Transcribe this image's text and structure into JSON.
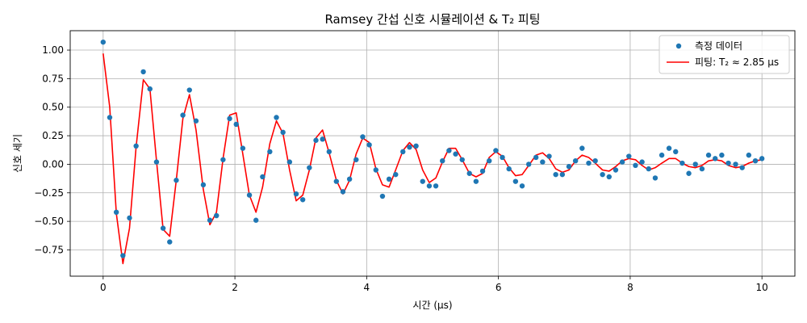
{
  "chart_data": {
    "type": "scatter+line",
    "title": "Ramsey 간섭 신호 시뮬레이션 & T₂ 피팅",
    "xlabel": "시간 (μs)",
    "ylabel": "신호 세기",
    "xlim": [
      -0.5,
      10.5
    ],
    "ylim": [
      -0.98,
      1.17
    ],
    "xticks": [
      0,
      2,
      4,
      6,
      8,
      10
    ],
    "xtick_labels": [
      "0",
      "2",
      "4",
      "6",
      "8",
      "10"
    ],
    "yticks": [
      -0.75,
      -0.5,
      -0.25,
      0.0,
      0.25,
      0.5,
      0.75,
      1.0
    ],
    "ytick_labels": [
      "−0.75",
      "−0.50",
      "−0.25",
      "0.00",
      "0.25",
      "0.50",
      "0.75",
      "1.00"
    ],
    "grid": true,
    "legend_position": "top-right",
    "colors": {
      "data": "#1f77b4",
      "fit": "#ff0000"
    },
    "series": [
      {
        "name": "측정 데이터",
        "kind": "scatter",
        "x": [
          0.0,
          0.1,
          0.2,
          0.3,
          0.4,
          0.5,
          0.61,
          0.71,
          0.81,
          0.91,
          1.01,
          1.11,
          1.21,
          1.31,
          1.41,
          1.52,
          1.62,
          1.72,
          1.82,
          1.92,
          2.02,
          2.12,
          2.22,
          2.32,
          2.42,
          2.53,
          2.63,
          2.73,
          2.83,
          2.93,
          3.03,
          3.13,
          3.23,
          3.33,
          3.43,
          3.54,
          3.64,
          3.74,
          3.84,
          3.94,
          4.04,
          4.14,
          4.24,
          4.34,
          4.44,
          4.55,
          4.65,
          4.75,
          4.85,
          4.95,
          5.05,
          5.15,
          5.25,
          5.35,
          5.45,
          5.56,
          5.66,
          5.76,
          5.86,
          5.96,
          6.06,
          6.16,
          6.26,
          6.36,
          6.46,
          6.57,
          6.67,
          6.77,
          6.87,
          6.97,
          7.07,
          7.17,
          7.27,
          7.37,
          7.47,
          7.58,
          7.68,
          7.78,
          7.88,
          7.98,
          8.08,
          8.18,
          8.28,
          8.38,
          8.48,
          8.59,
          8.69,
          8.79,
          8.89,
          8.99,
          9.09,
          9.19,
          9.29,
          9.39,
          9.49,
          9.6,
          9.7,
          9.8,
          9.9,
          10.0
        ],
        "y": [
          1.07,
          0.41,
          -0.42,
          -0.8,
          -0.47,
          0.16,
          0.81,
          0.66,
          0.02,
          -0.56,
          -0.68,
          -0.14,
          0.43,
          0.65,
          0.38,
          -0.18,
          -0.49,
          -0.45,
          0.04,
          0.4,
          0.35,
          0.14,
          -0.27,
          -0.49,
          -0.11,
          0.11,
          0.41,
          0.28,
          0.02,
          -0.26,
          -0.31,
          -0.03,
          0.21,
          0.22,
          0.11,
          -0.15,
          -0.24,
          -0.13,
          0.04,
          0.24,
          0.17,
          -0.05,
          -0.28,
          -0.13,
          -0.09,
          0.11,
          0.15,
          0.16,
          -0.15,
          -0.19,
          -0.19,
          0.03,
          0.12,
          0.09,
          0.04,
          -0.08,
          -0.15,
          -0.06,
          0.03,
          0.12,
          0.06,
          -0.04,
          -0.15,
          -0.19,
          0.0,
          0.06,
          0.02,
          0.07,
          -0.09,
          -0.09,
          -0.02,
          0.03,
          0.14,
          0.01,
          0.03,
          -0.09,
          -0.11,
          -0.05,
          0.02,
          0.07,
          -0.01,
          0.02,
          -0.04,
          -0.12,
          0.08,
          0.14,
          0.11,
          0.01,
          -0.08,
          0.0,
          -0.04,
          0.08,
          0.05,
          0.08,
          0.01,
          -0.0,
          -0.03,
          0.08,
          0.03,
          0.05
        ]
      },
      {
        "name": "피팅: T₂ ≈ 2.85 μs",
        "kind": "line",
        "x": [
          0.0,
          0.1,
          0.2,
          0.3,
          0.4,
          0.5,
          0.61,
          0.71,
          0.81,
          0.91,
          1.01,
          1.11,
          1.21,
          1.31,
          1.41,
          1.52,
          1.62,
          1.72,
          1.82,
          1.92,
          2.02,
          2.12,
          2.22,
          2.32,
          2.42,
          2.53,
          2.63,
          2.73,
          2.83,
          2.93,
          3.03,
          3.13,
          3.23,
          3.33,
          3.43,
          3.54,
          3.64,
          3.74,
          3.84,
          3.94,
          4.04,
          4.14,
          4.24,
          4.34,
          4.44,
          4.55,
          4.65,
          4.75,
          4.85,
          4.95,
          5.05,
          5.15,
          5.25,
          5.35,
          5.45,
          5.56,
          5.66,
          5.76,
          5.86,
          5.96,
          6.06,
          6.16,
          6.26,
          6.36,
          6.46,
          6.57,
          6.67,
          6.77,
          6.87,
          6.97,
          7.07,
          7.17,
          7.27,
          7.37,
          7.47,
          7.58,
          7.68,
          7.78,
          7.88,
          7.98,
          8.08,
          8.18,
          8.28,
          8.38,
          8.48,
          8.59,
          8.69,
          8.79,
          8.89,
          8.99,
          9.09,
          9.19,
          9.29,
          9.39,
          9.49,
          9.6,
          9.7,
          9.8,
          9.9,
          10.0
        ],
        "y": [
          0.97,
          0.5,
          -0.43,
          -0.87,
          -0.56,
          0.15,
          0.74,
          0.66,
          0.03,
          -0.57,
          -0.63,
          -0.14,
          0.4,
          0.61,
          0.3,
          -0.22,
          -0.53,
          -0.42,
          0.05,
          0.43,
          0.45,
          0.09,
          -0.27,
          -0.42,
          -0.2,
          0.18,
          0.38,
          0.27,
          -0.05,
          -0.32,
          -0.27,
          -0.05,
          0.23,
          0.3,
          0.1,
          -0.14,
          -0.26,
          -0.14,
          0.09,
          0.23,
          0.19,
          -0.04,
          -0.18,
          -0.2,
          -0.05,
          0.12,
          0.19,
          0.13,
          -0.05,
          -0.16,
          -0.12,
          0.02,
          0.14,
          0.14,
          0.04,
          -0.08,
          -0.11,
          -0.08,
          0.06,
          0.11,
          0.07,
          -0.03,
          -0.1,
          -0.09,
          -0.01,
          0.08,
          0.1,
          0.05,
          -0.04,
          -0.07,
          -0.05,
          0.03,
          0.08,
          0.06,
          0.01,
          -0.05,
          -0.06,
          -0.02,
          0.03,
          0.05,
          0.04,
          -0.01,
          -0.05,
          -0.03,
          0.01,
          0.05,
          0.05,
          0.01,
          -0.02,
          -0.03,
          -0.01,
          0.03,
          0.04,
          0.03,
          -0.01,
          -0.03,
          -0.02,
          0.01,
          0.03,
          0.04
        ]
      }
    ]
  }
}
